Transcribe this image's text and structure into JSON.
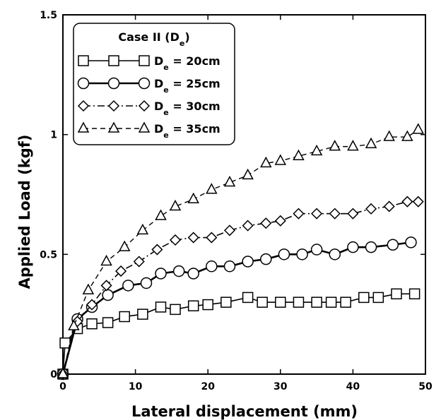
{
  "chart_data": {
    "type": "line",
    "xlabel": "Lateral displacement (mm)",
    "ylabel": "Applied Load (kgf)",
    "xlim": [
      0,
      50
    ],
    "ylim": [
      0,
      1.5
    ],
    "x_ticks": [
      0,
      10,
      20,
      30,
      40,
      50
    ],
    "x_tick_labels": [
      "0",
      "10",
      "20",
      "30",
      "40",
      "50"
    ],
    "y_ticks": [
      0,
      0.5,
      1,
      1.5
    ],
    "y_tick_labels": [
      "0",
      "0.5",
      "1",
      "1.5"
    ],
    "grid": false,
    "legend": {
      "title_main": "Case II (D",
      "title_sub": "e",
      "title_end": ")",
      "placement": "top-left"
    },
    "series": [
      {
        "name": "De = 20cm",
        "label_main": "D",
        "label_sub": "e",
        "label_rest": " = 20cm",
        "marker": "square",
        "dash": "solid",
        "x": [
          0,
          0.3,
          2,
          4,
          6.2,
          8.5,
          11,
          13.5,
          15.5,
          18,
          20,
          22.5,
          25.5,
          27.5,
          30,
          32.5,
          35,
          37,
          39,
          41.5,
          43.5,
          46,
          48.5
        ],
        "y": [
          0.0,
          0.13,
          0.19,
          0.21,
          0.215,
          0.24,
          0.25,
          0.28,
          0.27,
          0.285,
          0.29,
          0.3,
          0.32,
          0.3,
          0.3,
          0.3,
          0.3,
          0.3,
          0.3,
          0.32,
          0.32,
          0.335,
          0.335
        ]
      },
      {
        "name": "De = 25cm",
        "label_main": "D",
        "label_sub": "e",
        "label_rest": " = 25cm",
        "marker": "circle",
        "dash": "solid",
        "x": [
          0,
          2,
          4,
          6.2,
          9,
          11.5,
          13.5,
          16,
          18,
          20.5,
          23,
          25.5,
          28,
          30.5,
          33,
          35,
          37.5,
          40,
          42.5,
          45.5,
          48
        ],
        "y": [
          0.0,
          0.23,
          0.28,
          0.33,
          0.37,
          0.38,
          0.42,
          0.43,
          0.42,
          0.45,
          0.45,
          0.47,
          0.48,
          0.5,
          0.5,
          0.52,
          0.5,
          0.53,
          0.53,
          0.54,
          0.55
        ]
      },
      {
        "name": "De = 30cm",
        "label_main": "D",
        "label_sub": "e",
        "label_rest": " = 30cm",
        "marker": "diamond",
        "dash": "dashdot",
        "x": [
          0,
          2,
          4,
          6,
          8,
          10.5,
          13,
          15.5,
          18,
          20.5,
          23,
          25.5,
          28,
          30,
          32.5,
          35,
          37.5,
          40,
          42.5,
          45,
          47.5,
          49
        ],
        "y": [
          0.0,
          0.22,
          0.29,
          0.37,
          0.43,
          0.47,
          0.52,
          0.56,
          0.57,
          0.57,
          0.6,
          0.62,
          0.63,
          0.64,
          0.67,
          0.67,
          0.67,
          0.67,
          0.69,
          0.7,
          0.72,
          0.72
        ]
      },
      {
        "name": "De = 35cm",
        "label_main": "D",
        "label_sub": "e",
        "label_rest": " = 35cm",
        "marker": "triangle",
        "dash": "dashed",
        "x": [
          0,
          1.5,
          3.5,
          6,
          8.5,
          11,
          13.5,
          15.5,
          18,
          20.5,
          23,
          25.5,
          28,
          30,
          32.5,
          35,
          37.5,
          40,
          42.5,
          45,
          47.5,
          49
        ],
        "y": [
          0.0,
          0.2,
          0.35,
          0.47,
          0.53,
          0.6,
          0.66,
          0.7,
          0.73,
          0.77,
          0.8,
          0.83,
          0.88,
          0.89,
          0.91,
          0.93,
          0.95,
          0.95,
          0.96,
          0.99,
          0.99,
          1.02
        ]
      }
    ]
  }
}
